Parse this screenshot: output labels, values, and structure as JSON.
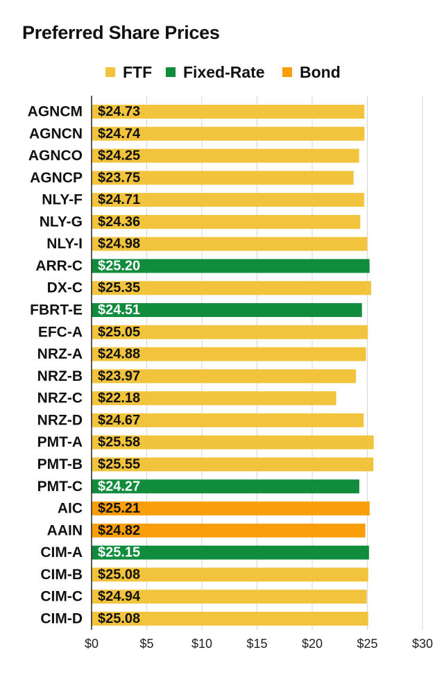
{
  "chart_data": {
    "type": "bar",
    "orientation": "horizontal",
    "title": "Preferred Share Prices",
    "legend": [
      {
        "name": "FTF",
        "color": "#f2c43d"
      },
      {
        "name": "Fixed-Rate",
        "color": "#118c3d"
      },
      {
        "name": "Bond",
        "color": "#fb9e0b"
      }
    ],
    "legend_placement": "top",
    "categories": [
      "AGNCM",
      "AGNCN",
      "AGNCO",
      "AGNCP",
      "NLY-F",
      "NLY-G",
      "NLY-I",
      "ARR-C",
      "DX-C",
      "FBRT-E",
      "EFC-A",
      "NRZ-A",
      "NRZ-B",
      "NRZ-C",
      "NRZ-D",
      "PMT-A",
      "PMT-B",
      "PMT-C",
      "AIC",
      "AAIN",
      "CIM-A",
      "CIM-B",
      "CIM-C",
      "CIM-D"
    ],
    "values": [
      24.73,
      24.74,
      24.25,
      23.75,
      24.71,
      24.36,
      24.98,
      25.2,
      25.35,
      24.51,
      25.05,
      24.88,
      23.97,
      22.18,
      24.67,
      25.58,
      25.55,
      24.27,
      25.21,
      24.82,
      25.15,
      25.08,
      24.94,
      25.08
    ],
    "value_labels": [
      "$24.73",
      "$24.74",
      "$24.25",
      "$23.75",
      "$24.71",
      "$24.36",
      "$24.98",
      "$25.20",
      "$25.35",
      "$24.51",
      "$25.05",
      "$24.88",
      "$23.97",
      "$22.18",
      "$24.67",
      "$25.58",
      "$25.55",
      "$24.27",
      "$25.21",
      "$24.82",
      "$25.15",
      "$25.08",
      "$24.94",
      "$25.08"
    ],
    "series_of_bar": [
      "FTF",
      "FTF",
      "FTF",
      "FTF",
      "FTF",
      "FTF",
      "FTF",
      "Fixed-Rate",
      "FTF",
      "Fixed-Rate",
      "FTF",
      "FTF",
      "FTF",
      "FTF",
      "FTF",
      "FTF",
      "FTF",
      "Fixed-Rate",
      "Bond",
      "Bond",
      "Fixed-Rate",
      "FTF",
      "FTF",
      "FTF"
    ],
    "xlim": [
      0,
      30
    ],
    "x_ticks": [
      0,
      5,
      10,
      15,
      20,
      25,
      30
    ],
    "x_tick_labels": [
      "$0",
      "$5",
      "$10",
      "$15",
      "$20",
      "$25",
      "$30"
    ],
    "grid": "vertical",
    "xlabel": "",
    "ylabel": ""
  }
}
